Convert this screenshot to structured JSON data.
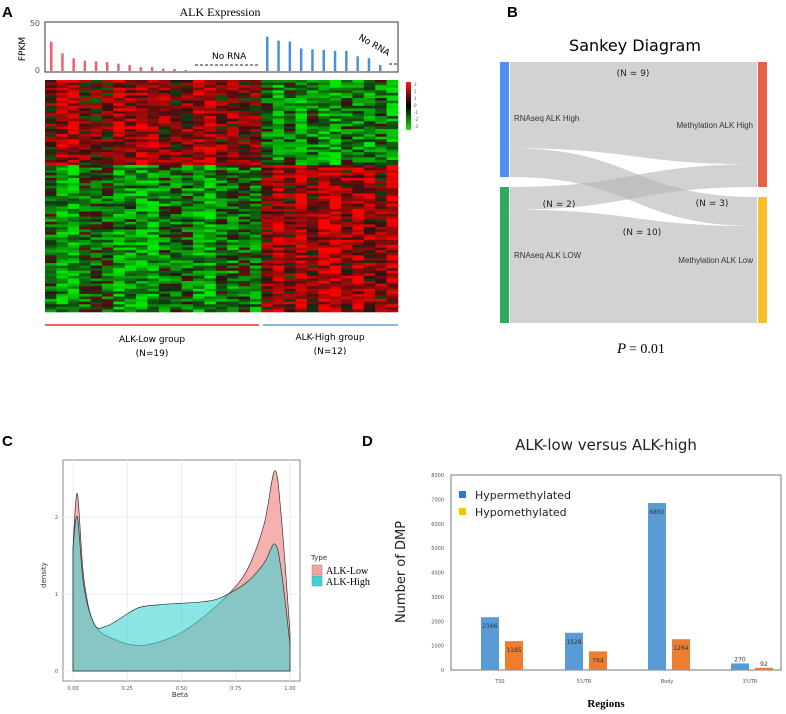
{
  "panels": {
    "a": "A",
    "b": "B",
    "c": "C",
    "d": "D"
  },
  "chart_data": [
    {
      "type": "bar",
      "panel": "A",
      "title": "ALK Expression",
      "ylabel": "FPKM",
      "ylim": [
        0,
        50
      ],
      "yticks": [
        "0",
        "50"
      ],
      "series": [
        {
          "name": "ALK-Low group",
          "color": "#f0606a",
          "values": [
            30,
            18,
            13,
            10.5,
            10,
            9,
            7.5,
            6,
            4,
            4,
            2.5,
            2,
            1
          ]
        },
        {
          "name": "ALK-High group",
          "color": "#4a90d9",
          "values": [
            35,
            31,
            30,
            23,
            22,
            21.5,
            20.5,
            20.5,
            15,
            13,
            6
          ]
        }
      ],
      "annotations": [
        "No RNA",
        "No RNA"
      ],
      "groups": [
        {
          "label": "ALK-Low group",
          "n": "(N=19)",
          "color": "#f0606a"
        },
        {
          "label": "ALK-High group",
          "n": "(N=12)",
          "color": "#8fb3d9"
        }
      ],
      "heatmap": {
        "type": "heatmap",
        "columns_low": 19,
        "columns_high": 12,
        "colorbar_ticks": [
          "3",
          "2",
          "1",
          "0",
          "-1",
          "-2",
          "-3"
        ],
        "colors": {
          "high": "#ff1a1a",
          "mid": "#000000",
          "low": "#19e619"
        }
      }
    },
    {
      "type": "sankey",
      "panel": "B",
      "title": "Sankey Diagram",
      "nodes_left": [
        {
          "label": "RNAseq ALK High",
          "color": "#4f8ff0"
        },
        {
          "label": "RNAseq ALK LOW",
          "color": "#2eaa62"
        }
      ],
      "nodes_right": [
        {
          "label": "Methylation ALK High",
          "color": "#e8604c"
        },
        {
          "label": "Methylation ALK Low",
          "color": "#f9c02e"
        }
      ],
      "links": [
        {
          "from": 0,
          "to": 0,
          "value": 9,
          "label": "(N = 9)"
        },
        {
          "from": 0,
          "to": 1,
          "value": 3,
          "label": "(N = 3)"
        },
        {
          "from": 1,
          "to": 0,
          "value": 2,
          "label": "(N = 2)"
        },
        {
          "from": 1,
          "to": 1,
          "value": 10,
          "label": "(N = 10)"
        }
      ],
      "p_value_label": "P",
      "p_value": "= 0.01"
    },
    {
      "type": "area",
      "panel": "C",
      "xlabel": "Beta",
      "ylabel": "density",
      "xlim": [
        0,
        1
      ],
      "ylim": [
        0,
        2.74
      ],
      "xticks": [
        "0.00",
        "0.25",
        "0.50",
        "0.75",
        "1.00"
      ],
      "yticks": [
        "0",
        "1",
        "2"
      ],
      "grid": true,
      "legend": {
        "title": "Type",
        "position": "right"
      },
      "series": [
        {
          "name": "ALK-Low",
          "color": "#f4a3a0",
          "x": [
            0,
            0.02,
            0.05,
            0.1,
            0.2,
            0.3,
            0.4,
            0.5,
            0.6,
            0.7,
            0.8,
            0.88,
            0.93,
            0.96,
            1.0
          ],
          "y": [
            1.6,
            2.3,
            1.2,
            0.6,
            0.4,
            0.33,
            0.38,
            0.5,
            0.7,
            0.95,
            1.3,
            1.9,
            2.6,
            2.0,
            0.5
          ]
        },
        {
          "name": "ALK-High",
          "color": "#3fd3d3",
          "x": [
            0,
            0.02,
            0.05,
            0.1,
            0.15,
            0.2,
            0.3,
            0.4,
            0.5,
            0.6,
            0.68,
            0.8,
            0.88,
            0.93,
            0.96,
            1.0
          ],
          "y": [
            1.6,
            2.0,
            1.1,
            0.6,
            0.58,
            0.65,
            0.82,
            0.86,
            0.88,
            0.9,
            0.95,
            1.15,
            1.4,
            1.65,
            1.3,
            0.35
          ]
        }
      ]
    },
    {
      "type": "bar",
      "panel": "D",
      "title": "ALK-low versus ALK-high",
      "xlabel": "Regions",
      "ylabel": "Number of DMP",
      "ylim": [
        0,
        8000
      ],
      "yticks": [
        "0",
        "1000",
        "2000",
        "3000",
        "4000",
        "5000",
        "6000",
        "7000",
        "8000"
      ],
      "categories": [
        "TSS",
        "5'UTR",
        "Body",
        "3'UTR"
      ],
      "legend": {
        "position": "top-left"
      },
      "series": [
        {
          "name": "Hypermethylated",
          "color": "#5b9bd5",
          "legend_color": "#2e75d0",
          "values": [
            2166,
            1528,
            6850,
            270
          ]
        },
        {
          "name": "Hypomethylated",
          "color": "#ed7d31",
          "legend_color": "#ffc000",
          "values": [
            1185,
            764,
            1264,
            92
          ]
        }
      ]
    }
  ]
}
